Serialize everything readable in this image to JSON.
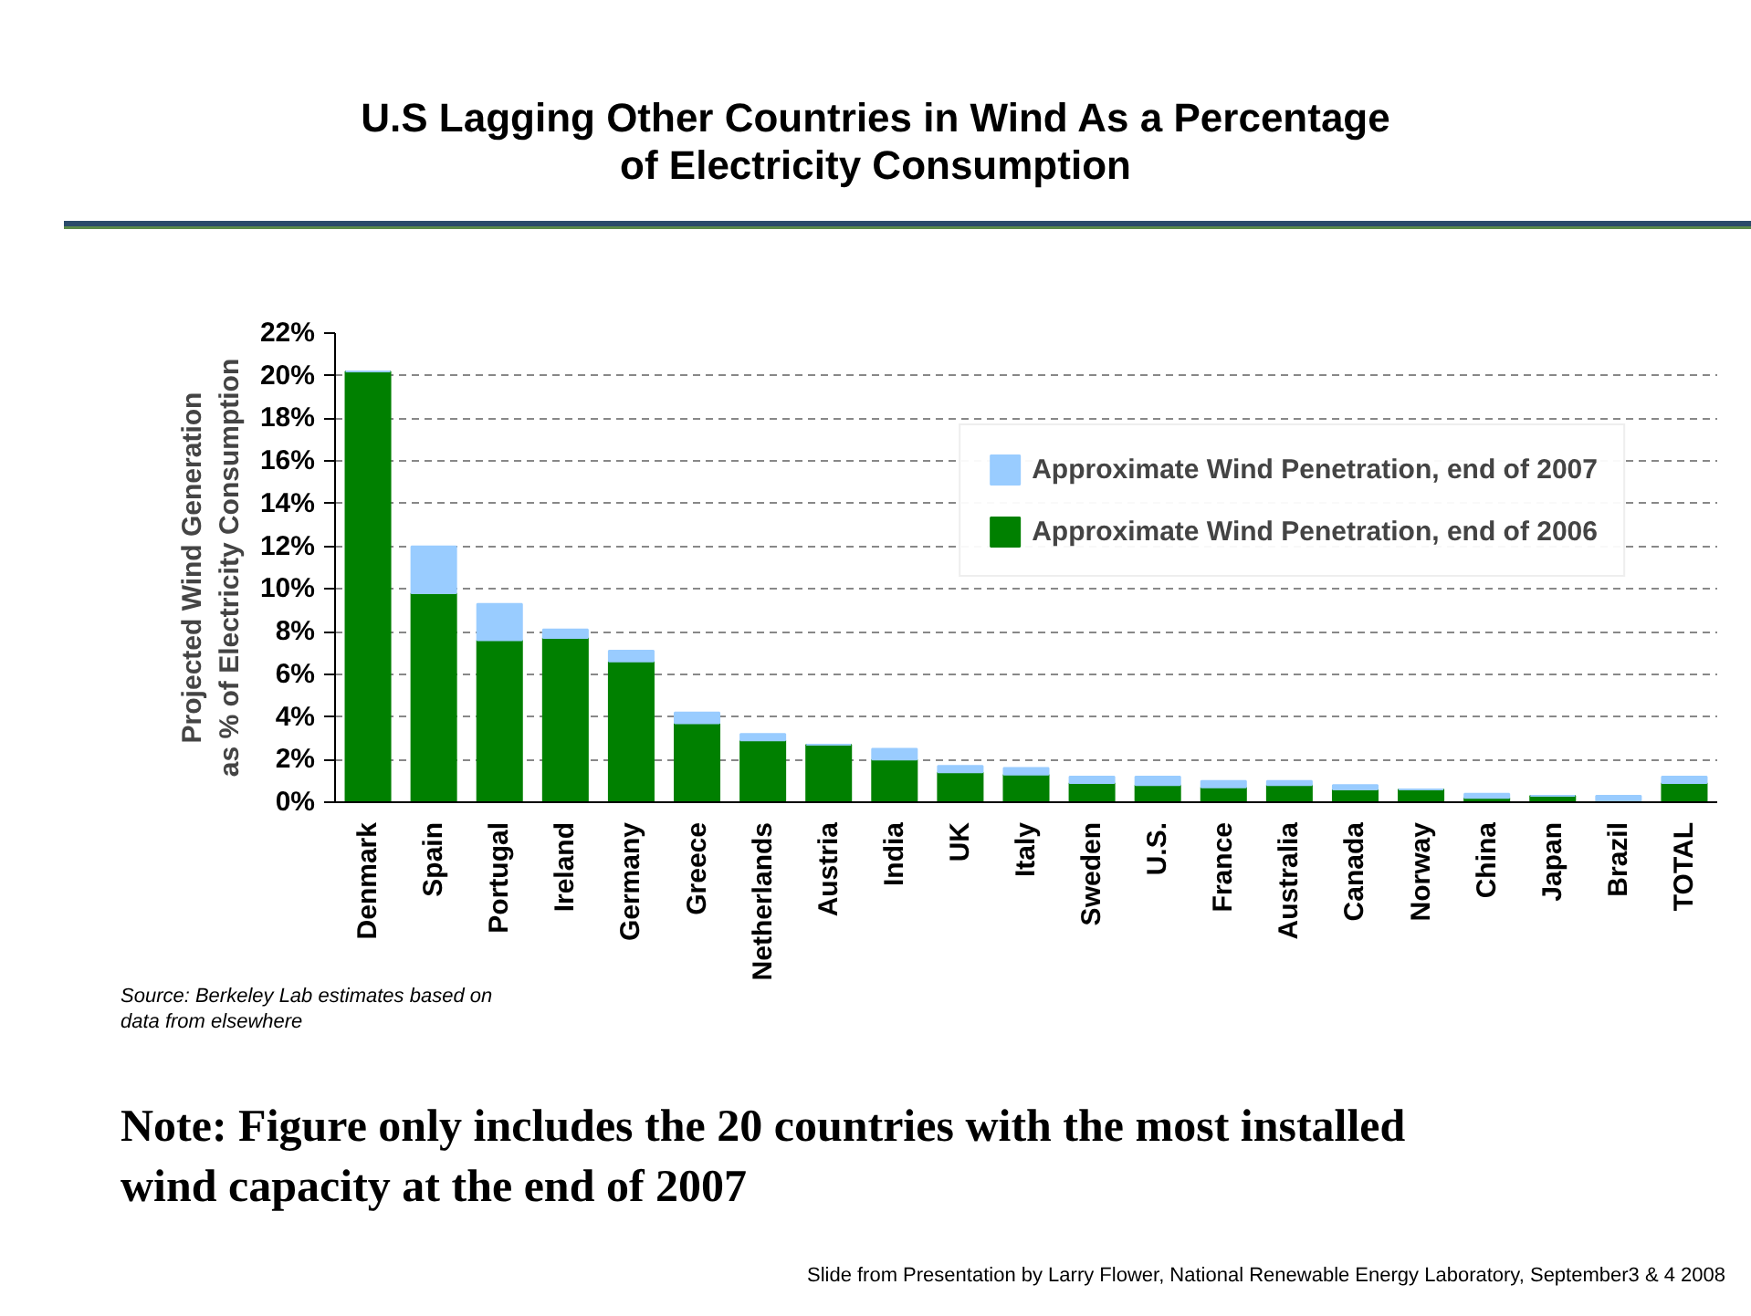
{
  "chart_data": {
    "type": "bar",
    "stacked": true,
    "title": "U.S Lagging Other Countries in Wind As a Percentage\nof Electricity Consumption",
    "ylabel": "Projected Wind Generation\nas % of Electricity Consumption",
    "categories": [
      "Denmark",
      "Spain",
      "Portugal",
      "Ireland",
      "Germany",
      "Greece",
      "Netherlands",
      "Austria",
      "India",
      "UK",
      "Italy",
      "Sweden",
      "U.S.",
      "France",
      "Australia",
      "Canada",
      "Norway",
      "China",
      "Japan",
      "Brazil",
      "TOTAL"
    ],
    "series": [
      {
        "name": "Approximate Wind Penetration, end of 2006",
        "color": "#008000",
        "values": [
          20.2,
          9.8,
          7.6,
          7.7,
          6.6,
          3.7,
          2.9,
          2.7,
          2.0,
          1.4,
          1.3,
          0.9,
          0.8,
          0.7,
          0.8,
          0.6,
          0.6,
          0.2,
          0.3,
          null,
          0.9
        ]
      },
      {
        "name": "Approximate Wind Penetration, end of 2007",
        "color": "#99ccff",
        "values": [
          0,
          2.2,
          1.7,
          0.4,
          0.5,
          0.5,
          0.3,
          0,
          0.5,
          0.3,
          0.3,
          0.3,
          0.4,
          0.3,
          0.2,
          0.2,
          0,
          0.2,
          0,
          0.3,
          0.3
        ]
      }
    ],
    "ylim": [
      0,
      22
    ],
    "yticks": [
      {
        "value": 0,
        "label": "0%"
      },
      {
        "value": 2,
        "label": "2%"
      },
      {
        "value": 4,
        "label": "4%"
      },
      {
        "value": 6,
        "label": "6%"
      },
      {
        "value": 8,
        "label": "8%"
      },
      {
        "value": 10,
        "label": "10%"
      },
      {
        "value": 12,
        "label": "12%"
      },
      {
        "value": 14,
        "label": "14%"
      },
      {
        "value": 16,
        "label": "16%"
      },
      {
        "value": 18,
        "label": "18%"
      },
      {
        "value": 20,
        "label": "20%"
      },
      {
        "value": 22,
        "label": "22%"
      }
    ],
    "grid": "y",
    "legend": "top right",
    "annotations": [
      "Source:  Berkeley Lab estimates based on data from elsewhere",
      "Note: Figure only includes the 20 countries with the most installed wind capacity at the end of 2007",
      "Slide from Presentation by Larry Flower, National Renewable Energy Laboratory, September3 & 4 2008"
    ]
  }
}
